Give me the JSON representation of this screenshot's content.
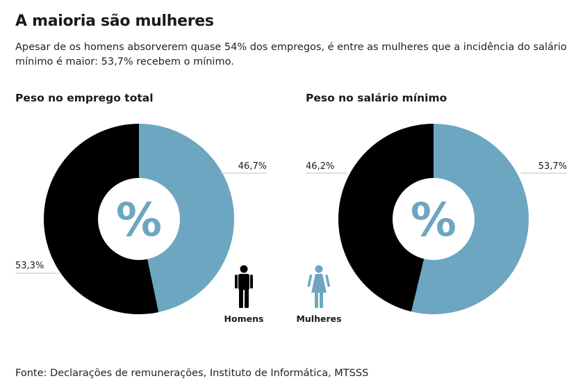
{
  "header": {
    "title": "A maioria são mulheres",
    "subtitle": "Apesar de os homens absorverem quase 54% dos empregos, é entre as mulheres que a incidência do salário mínimo é maior: 53,7% recebem o mínimo."
  },
  "footer": {
    "source": "Fonte: Declarações de remunerações, Instituto de Informática, MTSSS"
  },
  "colors": {
    "homens": "#000000",
    "mulheres": "#6da6c1"
  },
  "legend": {
    "homens_label": "Homens",
    "mulheres_label": "Mulheres"
  },
  "chart_data": [
    {
      "type": "pie",
      "variant": "donut",
      "title": "Peso no emprego total",
      "center_symbol": "%",
      "slices": [
        {
          "name": "Mulheres",
          "value": 46.7,
          "label": "46,7%",
          "color": "#6da6c1"
        },
        {
          "name": "Homens",
          "value": 53.3,
          "label": "53,3%",
          "color": "#000000"
        }
      ]
    },
    {
      "type": "pie",
      "variant": "donut",
      "title": "Peso no salário mínimo",
      "center_symbol": "%",
      "slices": [
        {
          "name": "Mulheres",
          "value": 53.7,
          "label": "53,7%",
          "color": "#6da6c1"
        },
        {
          "name": "Homens",
          "value": 46.2,
          "label": "46,2%",
          "color": "#000000"
        }
      ]
    }
  ]
}
